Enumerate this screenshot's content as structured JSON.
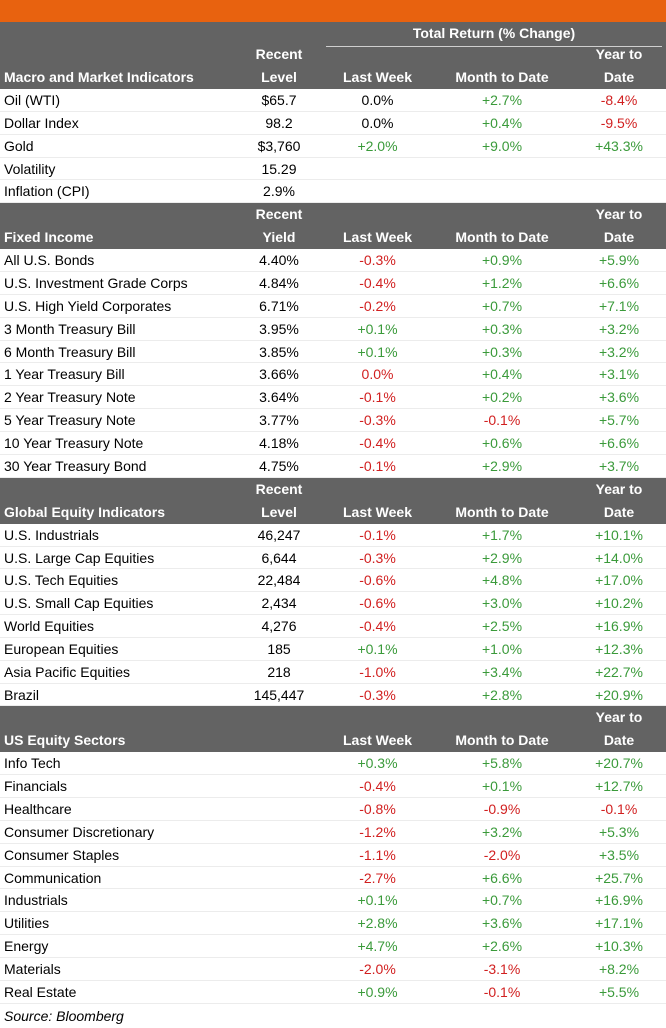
{
  "top_header": {
    "total_return": "Total Return (% Change)"
  },
  "sections": [
    {
      "title": "Macro and Market Indicators",
      "col_level_line1": "Recent",
      "col_level_line2": "Level",
      "col_week": "Last Week",
      "col_mtd": "Month to Date",
      "col_ytd_line1": "Year to",
      "col_ytd_line2": "Date",
      "rows": [
        {
          "name": "Oil (WTI)",
          "level": "$65.7",
          "week": "0.0%",
          "mtd": "+2.7%",
          "ytd": "-8.4%"
        },
        {
          "name": "Dollar Index",
          "level": "98.2",
          "week": "0.0%",
          "mtd": "+0.4%",
          "ytd": "-9.5%"
        },
        {
          "name": "Gold",
          "level": "$3,760",
          "week": "+2.0%",
          "mtd": "+9.0%",
          "ytd": "+43.3%"
        },
        {
          "name": "Volatility",
          "level": "15.29",
          "week": "",
          "mtd": "",
          "ytd": ""
        },
        {
          "name": "Inflation (CPI)",
          "level": "2.9%",
          "week": "",
          "mtd": "",
          "ytd": ""
        }
      ]
    },
    {
      "title": "Fixed Income",
      "col_level_line1": "Recent",
      "col_level_line2": "Yield",
      "col_week": "Last Week",
      "col_mtd": "Month to Date",
      "col_ytd_line1": "Year to",
      "col_ytd_line2": "Date",
      "rows": [
        {
          "name": "All U.S. Bonds",
          "level": "4.40%",
          "week": "-0.3%",
          "mtd": "+0.9%",
          "ytd": "+5.9%"
        },
        {
          "name": "U.S. Investment Grade Corps",
          "level": "4.84%",
          "week": "-0.4%",
          "mtd": "+1.2%",
          "ytd": "+6.6%"
        },
        {
          "name": "U.S. High Yield Corporates",
          "level": "6.71%",
          "week": "-0.2%",
          "mtd": "+0.7%",
          "ytd": "+7.1%"
        },
        {
          "name": "3 Month Treasury Bill",
          "level": "3.95%",
          "week": "+0.1%",
          "mtd": "+0.3%",
          "ytd": "+3.2%"
        },
        {
          "name": "6 Month Treasury Bill",
          "level": "3.85%",
          "week": "+0.1%",
          "mtd": "+0.3%",
          "ytd": "+3.2%"
        },
        {
          "name": "1 Year Treasury Bill",
          "level": "3.66%",
          "week": "0.0%",
          "mtd": "+0.4%",
          "ytd": "+3.1%"
        },
        {
          "name": "2 Year Treasury Note",
          "level": "3.64%",
          "week": "-0.1%",
          "mtd": "+0.2%",
          "ytd": "+3.6%"
        },
        {
          "name": "5 Year Treasury Note",
          "level": "3.77%",
          "week": "-0.3%",
          "mtd": "-0.1%",
          "ytd": "+5.7%"
        },
        {
          "name": "10 Year Treasury Note",
          "level": "4.18%",
          "week": "-0.4%",
          "mtd": "+0.6%",
          "ytd": "+6.6%"
        },
        {
          "name": "30 Year Treasury Bond",
          "level": "4.75%",
          "week": "-0.1%",
          "mtd": "+2.9%",
          "ytd": "+3.7%"
        }
      ]
    },
    {
      "title": "Global Equity Indicators",
      "col_level_line1": "Recent",
      "col_level_line2": "Level",
      "col_week": "Last Week",
      "col_mtd": "Month to Date",
      "col_ytd_line1": "Year to",
      "col_ytd_line2": "Date",
      "rows": [
        {
          "name": "U.S. Industrials",
          "level": "46,247",
          "week": "-0.1%",
          "mtd": "+1.7%",
          "ytd": "+10.1%"
        },
        {
          "name": "U.S. Large Cap Equities",
          "level": "6,644",
          "week": "-0.3%",
          "mtd": "+2.9%",
          "ytd": "+14.0%"
        },
        {
          "name": "U.S. Tech Equities",
          "level": "22,484",
          "week": "-0.6%",
          "mtd": "+4.8%",
          "ytd": "+17.0%"
        },
        {
          "name": "U.S. Small Cap Equities",
          "level": "2,434",
          "week": "-0.6%",
          "mtd": "+3.0%",
          "ytd": "+10.2%"
        },
        {
          "name": "World Equities",
          "level": "4,276",
          "week": "-0.4%",
          "mtd": "+2.5%",
          "ytd": "+16.9%"
        },
        {
          "name": "European Equities",
          "level": "185",
          "week": "+0.1%",
          "mtd": "+1.0%",
          "ytd": "+12.3%"
        },
        {
          "name": "Asia Pacific Equities",
          "level": "218",
          "week": "-1.0%",
          "mtd": "+3.4%",
          "ytd": "+22.7%"
        },
        {
          "name": "Brazil",
          "level": "145,447",
          "week": "-0.3%",
          "mtd": "+2.8%",
          "ytd": "+20.9%"
        }
      ]
    },
    {
      "title": "US Equity Sectors",
      "col_level_line1": "",
      "col_level_line2": "",
      "col_week": "Last Week",
      "col_mtd": "Month to Date",
      "col_ytd_line1": "Year to",
      "col_ytd_line2": "Date",
      "rows": [
        {
          "name": "Info Tech",
          "level": "",
          "week": "+0.3%",
          "mtd": "+5.8%",
          "ytd": "+20.7%"
        },
        {
          "name": "Financials",
          "level": "",
          "week": "-0.4%",
          "mtd": "+0.1%",
          "ytd": "+12.7%"
        },
        {
          "name": "Healthcare",
          "level": "",
          "week": "-0.8%",
          "mtd": "-0.9%",
          "ytd": "-0.1%"
        },
        {
          "name": "Consumer Discretionary",
          "level": "",
          "week": "-1.2%",
          "mtd": "+3.2%",
          "ytd": "+5.3%"
        },
        {
          "name": "Consumer Staples",
          "level": "",
          "week": "-1.1%",
          "mtd": "-2.0%",
          "ytd": "+3.5%"
        },
        {
          "name": "Communication",
          "level": "",
          "week": "-2.7%",
          "mtd": "+6.6%",
          "ytd": "+25.7%"
        },
        {
          "name": "Industrials",
          "level": "",
          "week": "+0.1%",
          "mtd": "+0.7%",
          "ytd": "+16.9%"
        },
        {
          "name": "Utilities",
          "level": "",
          "week": "+2.8%",
          "mtd": "+3.6%",
          "ytd": "+17.1%"
        },
        {
          "name": "Energy",
          "level": "",
          "week": "+4.7%",
          "mtd": "+2.6%",
          "ytd": "+10.3%"
        },
        {
          "name": "Materials",
          "level": "",
          "week": "-2.0%",
          "mtd": "-3.1%",
          "ytd": "+8.2%"
        },
        {
          "name": "Real Estate",
          "level": "",
          "week": "+0.9%",
          "mtd": "-0.1%",
          "ytd": "+5.5%"
        }
      ]
    }
  ],
  "source": "Source: Bloomberg",
  "colors": {
    "accent_bar": "#e8620f",
    "header_bg": "#636363",
    "positive": "#3a9a3a",
    "negative": "#d11f1f"
  }
}
